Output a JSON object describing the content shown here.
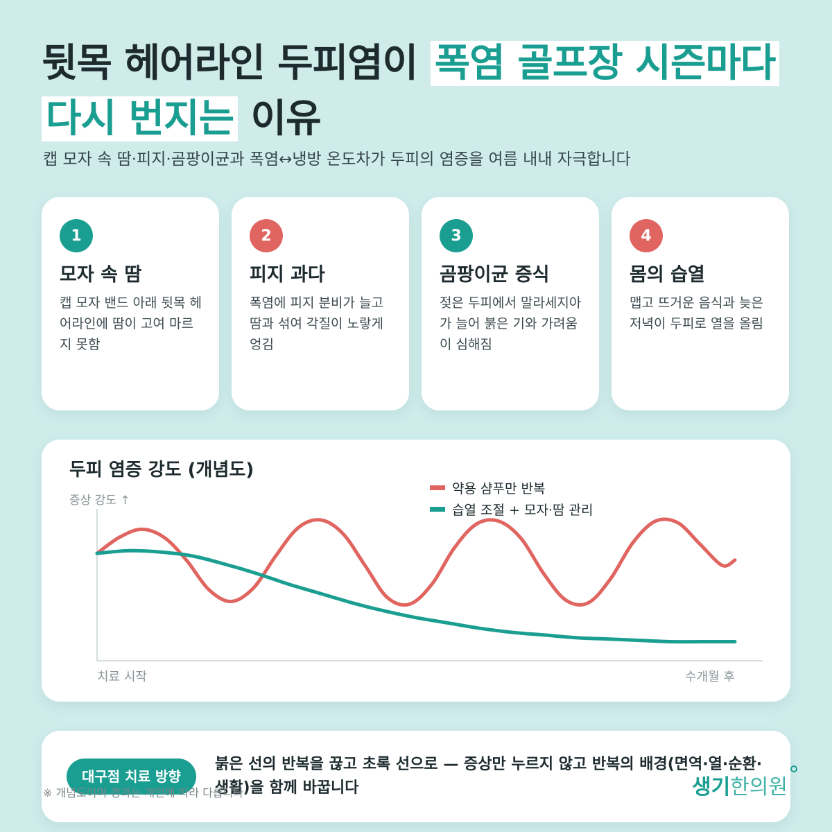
{
  "headline": {
    "part1": "뒷목 헤어라인 두피염이 ",
    "highlight1": "폭염 골프장 시즌마다",
    "highlight2": "다시 번지는",
    "part2": " 이유"
  },
  "subtitle": "캡 모자 속 땀·피지·곰팡이균과 폭염↔냉방 온도차가 두피의 염증을 여름 내내 자극합니다",
  "cards": [
    {
      "num": "1",
      "title": "모자 속 땀",
      "desc": "캡 모자 밴드 아래 뒷목 헤어라인에 땀이 고여 마르지 못함",
      "color": "#1a9e91"
    },
    {
      "num": "2",
      "title": "피지 과다",
      "desc": "폭염에 피지 분비가 늘고 땀과 섞여 각질이 노랗게 엉김",
      "color": "#e06560"
    },
    {
      "num": "3",
      "title": "곰팡이균 증식",
      "desc": "젖은 두피에서 말라세지아가 늘어 붉은 기와 가려움이 심해짐",
      "color": "#1a9e91"
    },
    {
      "num": "4",
      "title": "몸의 습열",
      "desc": "맵고 뜨거운 음식과 늦은 저녁이 두피로 열을 올림",
      "color": "#e06560"
    }
  ],
  "chart_data": {
    "type": "line",
    "title": "두피 염증 강도 (개념도)",
    "ylabel": "증상 강도 ↑",
    "x_start_label": "치료 시작",
    "x_end_label": "수개월 후",
    "xlim": [
      0,
      1
    ],
    "ylim": [
      0,
      1
    ],
    "grid": false,
    "legend_position": "top-right",
    "series": [
      {
        "name": "약용 샴푸만 반복",
        "color": "#e06560",
        "x": [
          0,
          0.035,
          0.07,
          0.105,
          0.14,
          0.175,
          0.21,
          0.245,
          0.28,
          0.315,
          0.35,
          0.385,
          0.42,
          0.455,
          0.49,
          0.525,
          0.56,
          0.595,
          0.63,
          0.665,
          0.7,
          0.735,
          0.77,
          0.805,
          0.84,
          0.875,
          0.91,
          0.945,
          0.98,
          1.0
        ],
        "y": [
          0.73,
          0.85,
          0.91,
          0.85,
          0.68,
          0.46,
          0.37,
          0.47,
          0.71,
          0.92,
          0.98,
          0.88,
          0.64,
          0.4,
          0.35,
          0.5,
          0.77,
          0.95,
          0.97,
          0.84,
          0.58,
          0.38,
          0.36,
          0.54,
          0.81,
          0.97,
          0.96,
          0.8,
          0.64,
          0.68
        ]
      },
      {
        "name": "습열 조절 + 모자·땀 관리",
        "color": "#1a9e91",
        "x": [
          0,
          0.05,
          0.1,
          0.15,
          0.2,
          0.25,
          0.3,
          0.35,
          0.4,
          0.45,
          0.5,
          0.55,
          0.6,
          0.65,
          0.7,
          0.75,
          0.8,
          0.85,
          0.9,
          0.95,
          1.0
        ],
        "y": [
          0.73,
          0.75,
          0.74,
          0.71,
          0.65,
          0.58,
          0.5,
          0.43,
          0.36,
          0.3,
          0.25,
          0.21,
          0.17,
          0.14,
          0.12,
          0.1,
          0.09,
          0.08,
          0.07,
          0.07,
          0.07
        ]
      }
    ]
  },
  "direction": {
    "label": "대구점 치료 방향",
    "text": "붉은 선의 반복을 끊고 초록 선으로 — 증상만 누르지 않고 반복의 배경(면역·열·순환·생활)을 함께 바꿉니다"
  },
  "footnote": "※ 개념도이며 경과는 개인에 따라 다릅니다",
  "logo": {
    "bold": "생기",
    "light": "한의원"
  },
  "colors": {
    "background": "#cfeceb",
    "teal": "#1a9e91",
    "coral": "#e06560",
    "text": "#1d2b2e"
  }
}
